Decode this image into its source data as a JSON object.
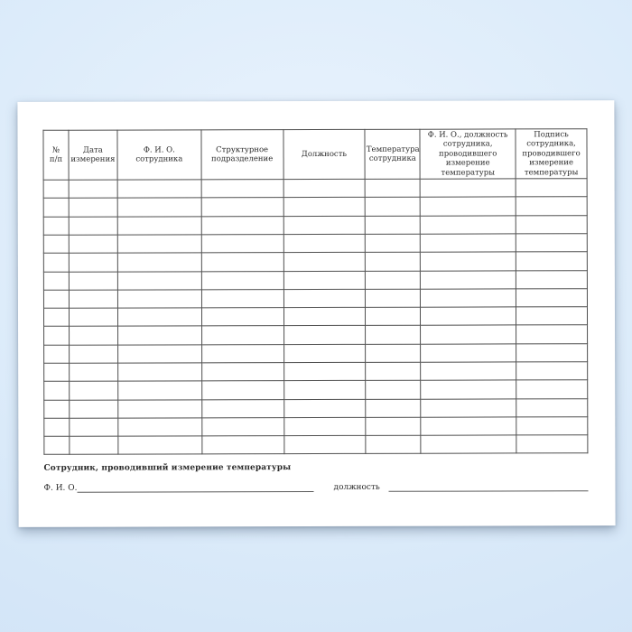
{
  "page": {
    "background_color": "#ddecfa",
    "paper_color": "#ffffff",
    "table_border_color": "#4f4f4f",
    "text_color": "#2b2b2b"
  },
  "table": {
    "columns": [
      "№\nп/п",
      "Дата\nизмерения",
      "Ф. И. О.\nсотрудника",
      "Структурное\nподразделение",
      "Должность",
      "Температура\nсотрудника",
      "Ф. И. О., должность\nсотрудника,\nпроводившего\nизмерение\nтемпературы",
      "Подпись\nсотрудника,\nпроводившего\nизмерение\nтемпературы"
    ],
    "empty_row_count": 15
  },
  "footer": {
    "measurer_title": "Сотрудник, проводивший измерение температуры",
    "name_label": "Ф. И. О.",
    "position_label": "должность"
  }
}
